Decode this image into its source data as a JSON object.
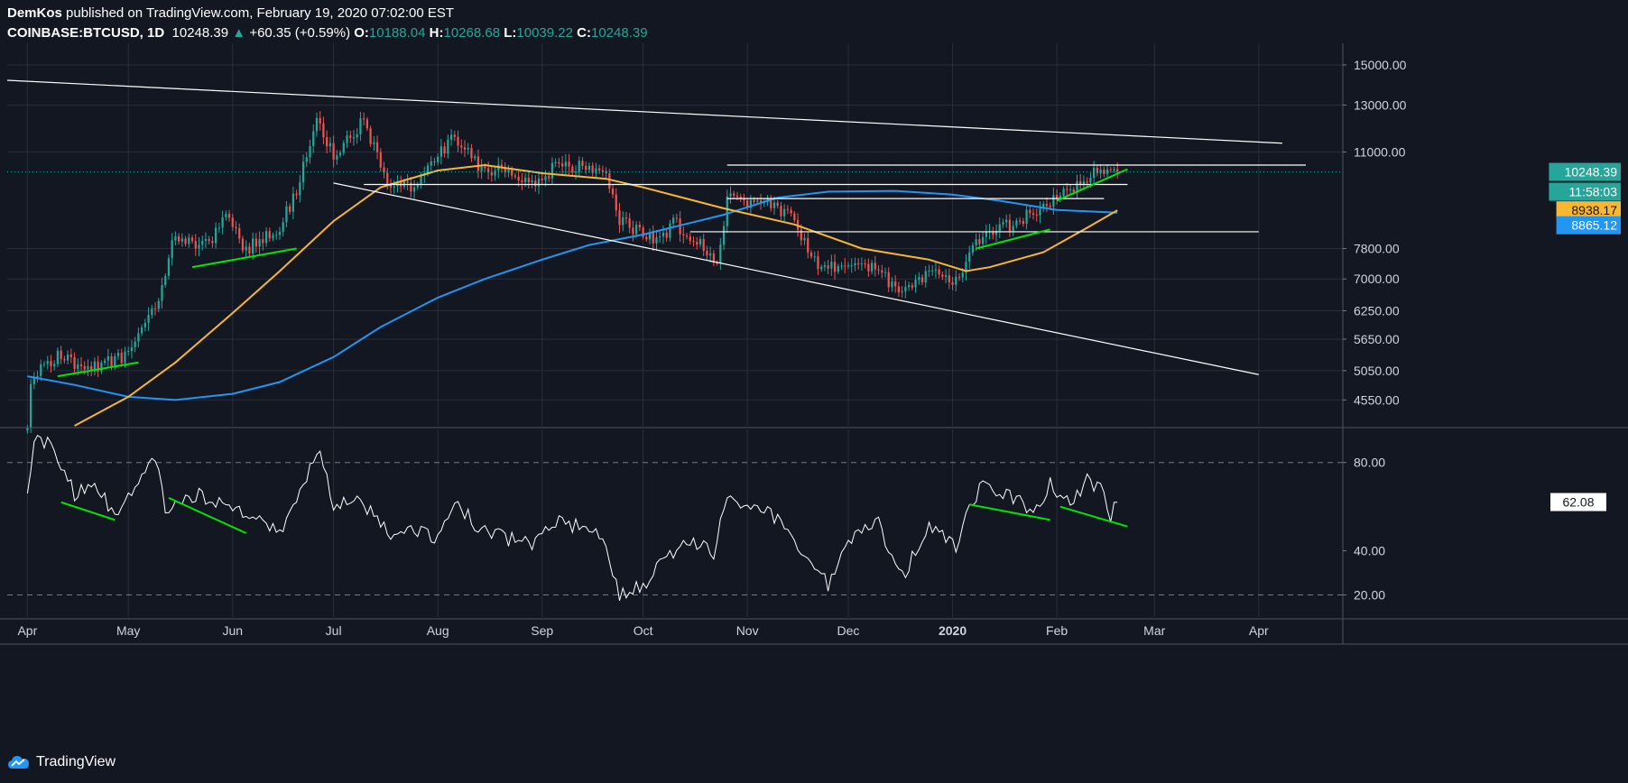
{
  "header": {
    "author": "DemKos",
    "published": "published on TradingView.com, February 19, 2020 07:02:00 EST",
    "symbol": "COINBASE:BTCUSD, 1D",
    "last": "10248.39",
    "change": "+60.35 (+0.59%)",
    "o_label": "O:",
    "o": "10188.04",
    "h_label": "H:",
    "h": "10268.68",
    "l_label": "L:",
    "l": "10039.22",
    "c_label": "C:",
    "c": "10248.39"
  },
  "footer": {
    "brand": "TradingView",
    "logo_icon": "tradingview-cloud-icon"
  },
  "colors": {
    "background": "#131722",
    "up": "#26a69a",
    "down": "#ef5350",
    "ma_fast": "#f7b731",
    "ma_slow": "#2196f3",
    "rsi": "#ffffff",
    "trend_green": "#00e600",
    "grid": "#2a2e39"
  },
  "chart_data": [
    {
      "type": "candlestick",
      "scale": "log",
      "ylim": [
        4150,
        16200
      ],
      "x_labels": [
        "Apr",
        "May",
        "Jun",
        "Jul",
        "Aug",
        "Sep",
        "Oct",
        "Nov",
        "Dec",
        "2020",
        "Feb",
        "Mar",
        "Apr"
      ],
      "y_ticks": [
        "15000.00",
        "13000.00",
        "11000.00",
        "10248.39",
        "8938.17",
        "8865.12",
        "7800.00",
        "7000.00",
        "6250.00",
        "5650.00",
        "5050.00",
        "4550.00"
      ],
      "price_tags": [
        {
          "value": "10248.39",
          "color": "#26a69a",
          "text_color": "#ffffff"
        },
        {
          "value": "11:58:03",
          "color": "#26a69a",
          "text_color": "#ffffff"
        },
        {
          "value": "8938.17",
          "color": "#f7b731",
          "text_color": "#131722"
        },
        {
          "value": "8865.12",
          "color": "#2196f3",
          "text_color": "#ffffff"
        }
      ],
      "last_price": 10248.39,
      "series": [
        {
          "name": "BTCUSD",
          "kind": "ohlc",
          "anchors": [
            [
              "2019-04-01",
              4150
            ],
            [
              "2019-04-02",
              4900
            ],
            [
              "2019-04-10",
              5300
            ],
            [
              "2019-04-20",
              5100
            ],
            [
              "2019-04-30",
              5300
            ],
            [
              "2019-05-10",
              6400
            ],
            [
              "2019-05-14",
              8000
            ],
            [
              "2019-05-25",
              8000
            ],
            [
              "2019-05-30",
              8700
            ],
            [
              "2019-06-05",
              7800
            ],
            [
              "2019-06-15",
              8400
            ],
            [
              "2019-06-20",
              9600
            ],
            [
              "2019-06-26",
              12400
            ],
            [
              "2019-07-01",
              10800
            ],
            [
              "2019-07-10",
              12300
            ],
            [
              "2019-07-17",
              9800
            ],
            [
              "2019-07-25",
              9600
            ],
            [
              "2019-08-06",
              11700
            ],
            [
              "2019-08-15",
              10200
            ],
            [
              "2019-08-20",
              10300
            ],
            [
              "2019-08-30",
              9700
            ],
            [
              "2019-09-05",
              10500
            ],
            [
              "2019-09-20",
              10300
            ],
            [
              "2019-09-24",
              8600
            ],
            [
              "2019-10-06",
              8000
            ],
            [
              "2019-10-10",
              8600
            ],
            [
              "2019-10-23",
              7450
            ],
            [
              "2019-10-26",
              9300
            ],
            [
              "2019-11-07",
              9200
            ],
            [
              "2019-11-15",
              8600
            ],
            [
              "2019-11-22",
              7300
            ],
            [
              "2019-12-01",
              7400
            ],
            [
              "2019-12-10",
              7200
            ],
            [
              "2019-12-17",
              6650
            ],
            [
              "2019-12-25",
              7200
            ],
            [
              "2020-01-02",
              7000
            ],
            [
              "2020-01-08",
              8000
            ],
            [
              "2020-01-20",
              8600
            ],
            [
              "2020-01-31",
              9300
            ],
            [
              "2020-02-10",
              10100
            ],
            [
              "2020-02-14",
              10300
            ],
            [
              "2020-02-19",
              10248
            ]
          ]
        },
        {
          "name": "",
          "kind": "line",
          "color": "#f7b731",
          "points": [
            [
              "2019-04-15",
              4150
            ],
            [
              "2019-05-01",
              4600
            ],
            [
              "2019-05-15",
              5200
            ],
            [
              "2019-06-01",
              6200
            ],
            [
              "2019-06-15",
              7200
            ],
            [
              "2019-07-01",
              8600
            ],
            [
              "2019-07-15",
              9700
            ],
            [
              "2019-08-01",
              10300
            ],
            [
              "2019-08-15",
              10500
            ],
            [
              "2019-09-01",
              10200
            ],
            [
              "2019-09-20",
              10000
            ],
            [
              "2019-10-01",
              9700
            ],
            [
              "2019-10-25",
              9000
            ],
            [
              "2019-11-15",
              8500
            ],
            [
              "2019-12-05",
              7800
            ],
            [
              "2019-12-25",
              7500
            ],
            [
              "2020-01-05",
              7200
            ],
            [
              "2020-01-12",
              7300
            ],
            [
              "2020-01-28",
              7700
            ],
            [
              "2020-02-10",
              8400
            ],
            [
              "2020-02-19",
              8938
            ]
          ]
        },
        {
          "name": "",
          "kind": "line",
          "color": "#2196f3",
          "points": [
            [
              "2019-04-01",
              4950
            ],
            [
              "2019-04-15",
              4800
            ],
            [
              "2019-05-01",
              4600
            ],
            [
              "2019-05-15",
              4550
            ],
            [
              "2019-06-01",
              4650
            ],
            [
              "2019-06-15",
              4850
            ],
            [
              "2019-07-01",
              5300
            ],
            [
              "2019-07-15",
              5900
            ],
            [
              "2019-08-01",
              6550
            ],
            [
              "2019-08-15",
              7000
            ],
            [
              "2019-09-01",
              7500
            ],
            [
              "2019-09-15",
              7900
            ],
            [
              "2019-10-01",
              8200
            ],
            [
              "2019-10-25",
              8800
            ],
            [
              "2019-11-10",
              9350
            ],
            [
              "2019-11-25",
              9550
            ],
            [
              "2019-12-15",
              9580
            ],
            [
              "2020-01-01",
              9450
            ],
            [
              "2020-01-15",
              9250
            ],
            [
              "2020-02-01",
              8950
            ],
            [
              "2020-02-19",
              8865
            ]
          ]
        }
      ],
      "annotations": [
        {
          "kind": "trendline",
          "color": "#ffffff",
          "points": [
            [
              "2019-03-26",
              14200
            ],
            [
              "2020-04-08",
              11350
            ]
          ]
        },
        {
          "kind": "trendline",
          "color": "#ffffff",
          "points": [
            [
              "2019-07-01",
              9850
            ],
            [
              "2020-04-01",
              4980
            ]
          ]
        },
        {
          "kind": "hline",
          "color": "#ffffff",
          "from": "2019-10-26",
          "to": "2020-04-15",
          "value": 10500
        },
        {
          "kind": "hline",
          "color": "#ffffff",
          "from": "2019-07-10",
          "to": "2020-02-22",
          "value": 9800
        },
        {
          "kind": "hline",
          "color": "#ffffff",
          "from": "2019-10-26",
          "to": "2020-02-15",
          "value": 9320
        },
        {
          "kind": "hline",
          "color": "#ffffff",
          "from": "2019-10-15",
          "to": "2020-04-01",
          "value": 8280
        },
        {
          "kind": "trendline",
          "color": "#00e600",
          "points": [
            [
              "2019-05-20",
              7300
            ],
            [
              "2019-06-20",
              7800
            ]
          ]
        },
        {
          "kind": "trendline",
          "color": "#00e600",
          "points": [
            [
              "2019-04-10",
              4950
            ],
            [
              "2019-05-04",
              5200
            ]
          ]
        },
        {
          "kind": "trendline",
          "color": "#00e600",
          "points": [
            [
              "2020-01-08",
              7800
            ],
            [
              "2020-01-30",
              8350
            ]
          ]
        },
        {
          "kind": "trendline",
          "color": "#00e600",
          "points": [
            [
              "2020-02-01",
              9250
            ],
            [
              "2020-02-22",
              10350
            ]
          ]
        }
      ]
    },
    {
      "type": "line",
      "ylim": [
        10,
        95
      ],
      "y_ticks": [
        "80.00",
        "40.00",
        "20.00"
      ],
      "dashed_levels": [
        80,
        20
      ],
      "current_tag": "62.08",
      "series": [
        {
          "name": "",
          "color": "#ffffff",
          "points": [
            [
              "2019-04-01",
              63
            ],
            [
              "2019-04-03",
              90
            ],
            [
              "2019-04-08",
              88
            ],
            [
              "2019-04-15",
              66
            ],
            [
              "2019-04-22",
              68
            ],
            [
              "2019-04-27",
              55
            ],
            [
              "2019-05-04",
              70
            ],
            [
              "2019-05-09",
              84
            ],
            [
              "2019-05-12",
              60
            ],
            [
              "2019-05-22",
              66
            ],
            [
              "2019-06-01",
              58
            ],
            [
              "2019-06-10",
              55
            ],
            [
              "2019-06-14",
              48
            ],
            [
              "2019-06-20",
              60
            ],
            [
              "2019-06-24",
              78
            ],
            [
              "2019-06-27",
              88
            ],
            [
              "2019-07-01",
              60
            ],
            [
              "2019-07-08",
              65
            ],
            [
              "2019-07-18",
              47
            ],
            [
              "2019-07-25",
              50
            ],
            [
              "2019-07-31",
              45
            ],
            [
              "2019-08-06",
              64
            ],
            [
              "2019-08-12",
              52
            ],
            [
              "2019-08-20",
              46
            ],
            [
              "2019-08-30",
              43
            ],
            [
              "2019-09-05",
              53
            ],
            [
              "2019-09-15",
              50
            ],
            [
              "2019-09-20",
              44
            ],
            [
              "2019-09-24",
              20
            ],
            [
              "2019-10-01",
              25
            ],
            [
              "2019-10-08",
              36
            ],
            [
              "2019-10-15",
              46
            ],
            [
              "2019-10-22",
              38
            ],
            [
              "2019-10-26",
              66
            ],
            [
              "2019-11-02",
              60
            ],
            [
              "2019-11-07",
              58
            ],
            [
              "2019-11-15",
              46
            ],
            [
              "2019-11-25",
              24
            ],
            [
              "2019-12-01",
              46
            ],
            [
              "2019-12-10",
              52
            ],
            [
              "2019-12-17",
              28
            ],
            [
              "2019-12-25",
              52
            ],
            [
              "2020-01-02",
              41
            ],
            [
              "2020-01-06",
              62
            ],
            [
              "2020-01-10",
              69
            ],
            [
              "2020-01-22",
              62
            ],
            [
              "2020-01-25",
              56
            ],
            [
              "2020-01-30",
              70
            ],
            [
              "2020-02-05",
              62
            ],
            [
              "2020-02-10",
              72
            ],
            [
              "2020-02-15",
              66
            ],
            [
              "2020-02-17",
              56
            ],
            [
              "2020-02-19",
              62
            ]
          ]
        }
      ],
      "annotations": [
        {
          "kind": "trendline",
          "color": "#00e600",
          "points": [
            [
              "2019-04-11",
              62
            ],
            [
              "2019-04-27",
              54
            ]
          ]
        },
        {
          "kind": "trendline",
          "color": "#00e600",
          "points": [
            [
              "2019-05-13",
              64
            ],
            [
              "2019-06-05",
              48
            ]
          ]
        },
        {
          "kind": "trendline",
          "color": "#00e600",
          "points": [
            [
              "2020-01-06",
              61
            ],
            [
              "2020-01-30",
              54
            ]
          ]
        },
        {
          "kind": "trendline",
          "color": "#00e600",
          "points": [
            [
              "2020-02-02",
              60
            ],
            [
              "2020-02-22",
              51
            ]
          ]
        }
      ]
    }
  ]
}
